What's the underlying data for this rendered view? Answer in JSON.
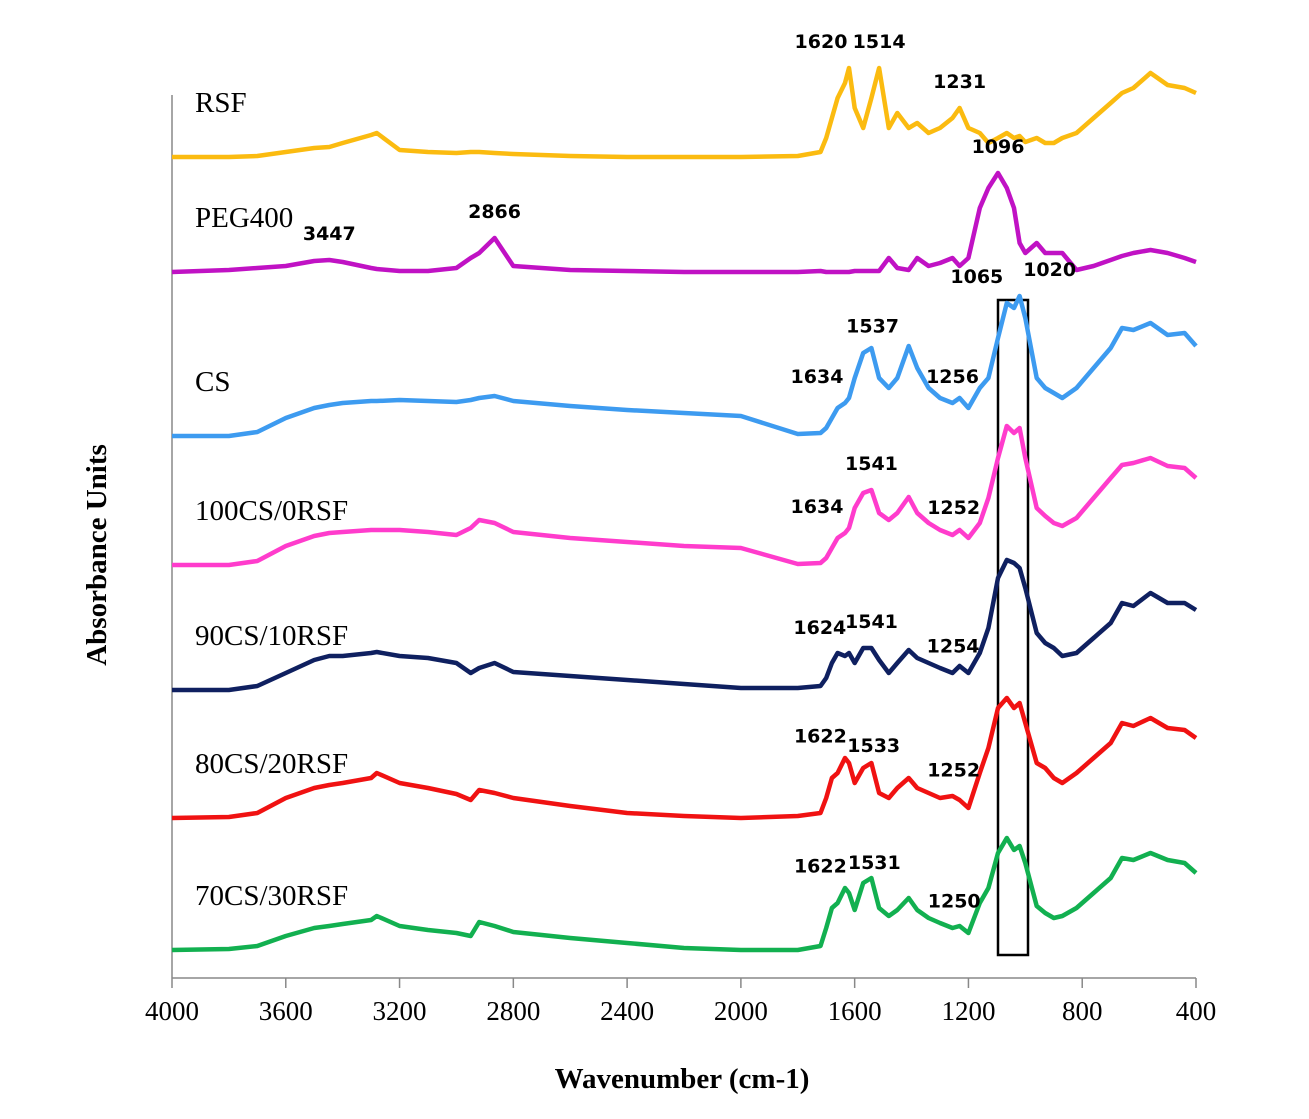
{
  "chart_data": {
    "type": "line",
    "x_label": "Wavenumber (cm-1)",
    "y_label": "Absorbance Units",
    "xlim": [
      4000,
      400
    ],
    "xticks": [
      4000,
      3600,
      3200,
      2800,
      2400,
      2000,
      1600,
      1200,
      800,
      400
    ],
    "ylim": [
      0,
      920
    ],
    "x": [
      4000,
      3800,
      3700,
      3600,
      3500,
      3447,
      3400,
      3300,
      3280,
      3200,
      3100,
      3000,
      2950,
      2920,
      2866,
      2800,
      2600,
      2400,
      2200,
      2000,
      1800,
      1720,
      1700,
      1680,
      1660,
      1634,
      1620,
      1600,
      1570,
      1541,
      1514,
      1480,
      1450,
      1410,
      1380,
      1340,
      1300,
      1256,
      1231,
      1200,
      1160,
      1130,
      1096,
      1065,
      1040,
      1020,
      1000,
      960,
      930,
      900,
      870,
      820,
      760,
      700,
      660,
      620,
      560,
      500,
      440,
      400
    ],
    "series": [
      {
        "name": "RSF",
        "color": "#fbbb10",
        "peaks": [
          1620,
          1514,
          1231
        ],
        "values": [
          821,
          821,
          822,
          826,
          830,
          831,
          835,
          843,
          845,
          828,
          826,
          825,
          826,
          826,
          825,
          824,
          822,
          821,
          821,
          821,
          822,
          826,
          840,
          860,
          880,
          895,
          910,
          870,
          850,
          880,
          910,
          850,
          865,
          850,
          855,
          845,
          850,
          860,
          870,
          850,
          845,
          835,
          840,
          845,
          840,
          842,
          836,
          840,
          835,
          835,
          840,
          845,
          860,
          875,
          885,
          890,
          905,
          893,
          890,
          885
        ]
      },
      {
        "name": "PEG400",
        "color": "#c012c4",
        "peaks": [
          3447,
          2866,
          1096
        ],
        "values": [
          706,
          708,
          710,
          712,
          717,
          718,
          716,
          710,
          709,
          707,
          707,
          710,
          720,
          725,
          740,
          712,
          708,
          707,
          706,
          706,
          706,
          707,
          706,
          706,
          706,
          706,
          706,
          707,
          707,
          707,
          707,
          720,
          710,
          708,
          720,
          712,
          715,
          720,
          712,
          720,
          770,
          790,
          805,
          790,
          770,
          735,
          725,
          735,
          725,
          725,
          725,
          708,
          712,
          718,
          722,
          725,
          728,
          725,
          720,
          716
        ]
      },
      {
        "name": "CS",
        "color": "#3d9bf0",
        "peaks": [
          1634,
          1537,
          1256,
          1065,
          1020
        ],
        "values": [
          542,
          542,
          546,
          560,
          570,
          573,
          575,
          577,
          577,
          578,
          577,
          576,
          578,
          580,
          582,
          577,
          572,
          568,
          565,
          562,
          544,
          545,
          550,
          560,
          570,
          575,
          580,
          600,
          625,
          630,
          600,
          590,
          600,
          632,
          610,
          590,
          580,
          575,
          580,
          570,
          590,
          600,
          640,
          675,
          670,
          682,
          660,
          600,
          590,
          585,
          580,
          590,
          610,
          630,
          650,
          648,
          655,
          643,
          645,
          632
        ]
      },
      {
        "name": "100CS/0RSF",
        "color": "#ff3ccc",
        "peaks": [
          1634,
          1541,
          1252
        ],
        "values": [
          413,
          413,
          417,
          432,
          442,
          445,
          446,
          448,
          448,
          448,
          446,
          443,
          450,
          458,
          455,
          446,
          440,
          436,
          432,
          430,
          414,
          415,
          420,
          430,
          440,
          445,
          450,
          470,
          485,
          488,
          465,
          458,
          465,
          481,
          465,
          455,
          448,
          443,
          448,
          440,
          455,
          480,
          520,
          552,
          545,
          550,
          520,
          470,
          462,
          455,
          452,
          460,
          480,
          500,
          513,
          515,
          520,
          512,
          510,
          500
        ]
      },
      {
        "name": "90CS/10RSF",
        "color": "#0f2060",
        "peaks": [
          1624,
          1541,
          1254
        ],
        "values": [
          288,
          288,
          292,
          305,
          318,
          322,
          322,
          325,
          326,
          322,
          320,
          315,
          305,
          310,
          315,
          306,
          302,
          298,
          294,
          290,
          290,
          292,
          300,
          315,
          325,
          322,
          325,
          315,
          330,
          330,
          318,
          305,
          315,
          328,
          320,
          315,
          310,
          305,
          312,
          305,
          325,
          350,
          400,
          418,
          415,
          410,
          390,
          345,
          335,
          330,
          322,
          325,
          340,
          355,
          375,
          372,
          385,
          375,
          375,
          368
        ]
      },
      {
        "name": "80CS/20RSF",
        "color": "#f01212",
        "peaks": [
          1622,
          1533,
          1252
        ],
        "values": [
          160,
          161,
          165,
          180,
          190,
          193,
          195,
          200,
          205,
          195,
          190,
          184,
          178,
          188,
          185,
          180,
          172,
          165,
          162,
          160,
          162,
          165,
          180,
          200,
          205,
          220,
          215,
          195,
          210,
          215,
          185,
          180,
          190,
          200,
          190,
          185,
          180,
          182,
          178,
          170,
          205,
          230,
          270,
          280,
          270,
          275,
          255,
          215,
          210,
          200,
          195,
          205,
          220,
          235,
          255,
          252,
          260,
          250,
          248,
          240
        ]
      },
      {
        "name": "70CS/30RSF",
        "color": "#12b050",
        "peaks": [
          1622,
          1531,
          1250
        ],
        "values": [
          28,
          29,
          32,
          42,
          50,
          52,
          54,
          58,
          62,
          52,
          48,
          45,
          42,
          56,
          52,
          46,
          40,
          35,
          30,
          28,
          28,
          32,
          50,
          70,
          75,
          90,
          85,
          68,
          95,
          100,
          70,
          62,
          68,
          80,
          68,
          60,
          55,
          50,
          52,
          45,
          75,
          90,
          125,
          140,
          128,
          132,
          115,
          72,
          65,
          60,
          62,
          70,
          85,
          100,
          120,
          118,
          125,
          118,
          115,
          105
        ]
      }
    ]
  }
}
